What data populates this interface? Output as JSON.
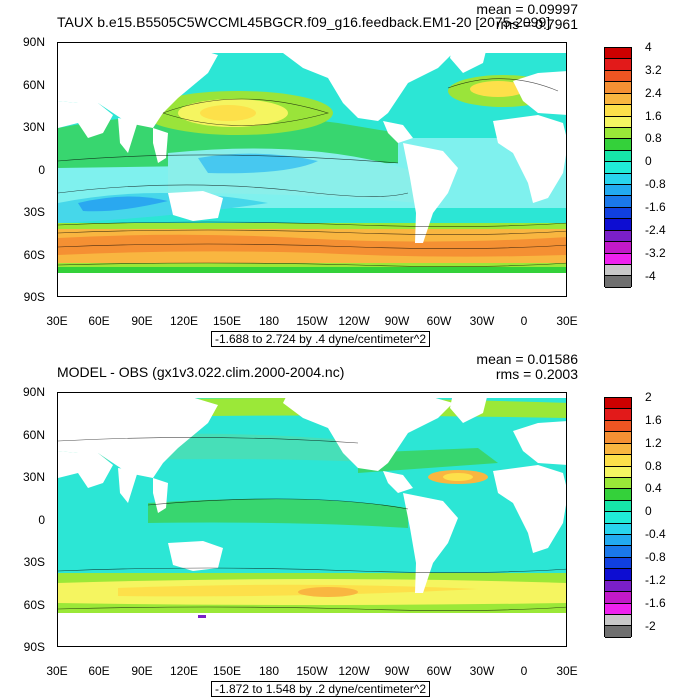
{
  "panels": [
    {
      "title": "TAUX b.e15.B5505C5WCCML45BGCR.f09_g16.feedback.EM1-20 [2075-2099]",
      "mean": "mean = 0.09997",
      "rms": "rms = 0.7961",
      "range": "-1.688 to 2.724 by .4 dyne/centimeter^2",
      "colorbar_labels": [
        "4",
        "3.2",
        "2.4",
        "1.6",
        "0.8",
        "0",
        "-0.8",
        "-1.6",
        "-2.4",
        "-3.2",
        "-4"
      ],
      "colorbar_colors": [
        "#cc0000",
        "#e21a1a",
        "#ee5522",
        "#f59033",
        "#f9b640",
        "#fde04a",
        "#f5f562",
        "#9be838",
        "#34d13a",
        "#16e6a8",
        "#20ecd8",
        "#28d4ee",
        "#22aaf0",
        "#1a78ea",
        "#1040e0",
        "#0d0dd2",
        "#7a1fc8",
        "#c219c8",
        "#ee22ee",
        "#c8c8c8",
        "#707070"
      ]
    },
    {
      "title": "MODEL - OBS (gx1v3.022.clim.2000-2004.nc)",
      "mean": "mean = 0.01586",
      "rms": "rms = 0.2003",
      "range": "-1.872 to 1.548 by .2 dyne/centimeter^2",
      "colorbar_labels": [
        "2",
        "1.6",
        "1.2",
        "0.8",
        "0.4",
        "0",
        "-0.4",
        "-0.8",
        "-1.2",
        "-1.6",
        "-2"
      ],
      "colorbar_colors": [
        "#cc0000",
        "#e21a1a",
        "#ee5522",
        "#f59033",
        "#f9b640",
        "#fde04a",
        "#f5f562",
        "#9be838",
        "#34d13a",
        "#16e6a8",
        "#20ecd8",
        "#28d4ee",
        "#22aaf0",
        "#1a78ea",
        "#1040e0",
        "#0d0dd2",
        "#7a1fc8",
        "#c219c8",
        "#ee22ee",
        "#c8c8c8",
        "#707070"
      ]
    }
  ],
  "lat_labels": [
    "90N",
    "60N",
    "30N",
    "0",
    "30S",
    "60S",
    "90S"
  ],
  "lon_labels": [
    "30E",
    "60E",
    "90E",
    "120E",
    "150E",
    "180",
    "150W",
    "120W",
    "90W",
    "60W",
    "30W",
    "0",
    "30E"
  ]
}
